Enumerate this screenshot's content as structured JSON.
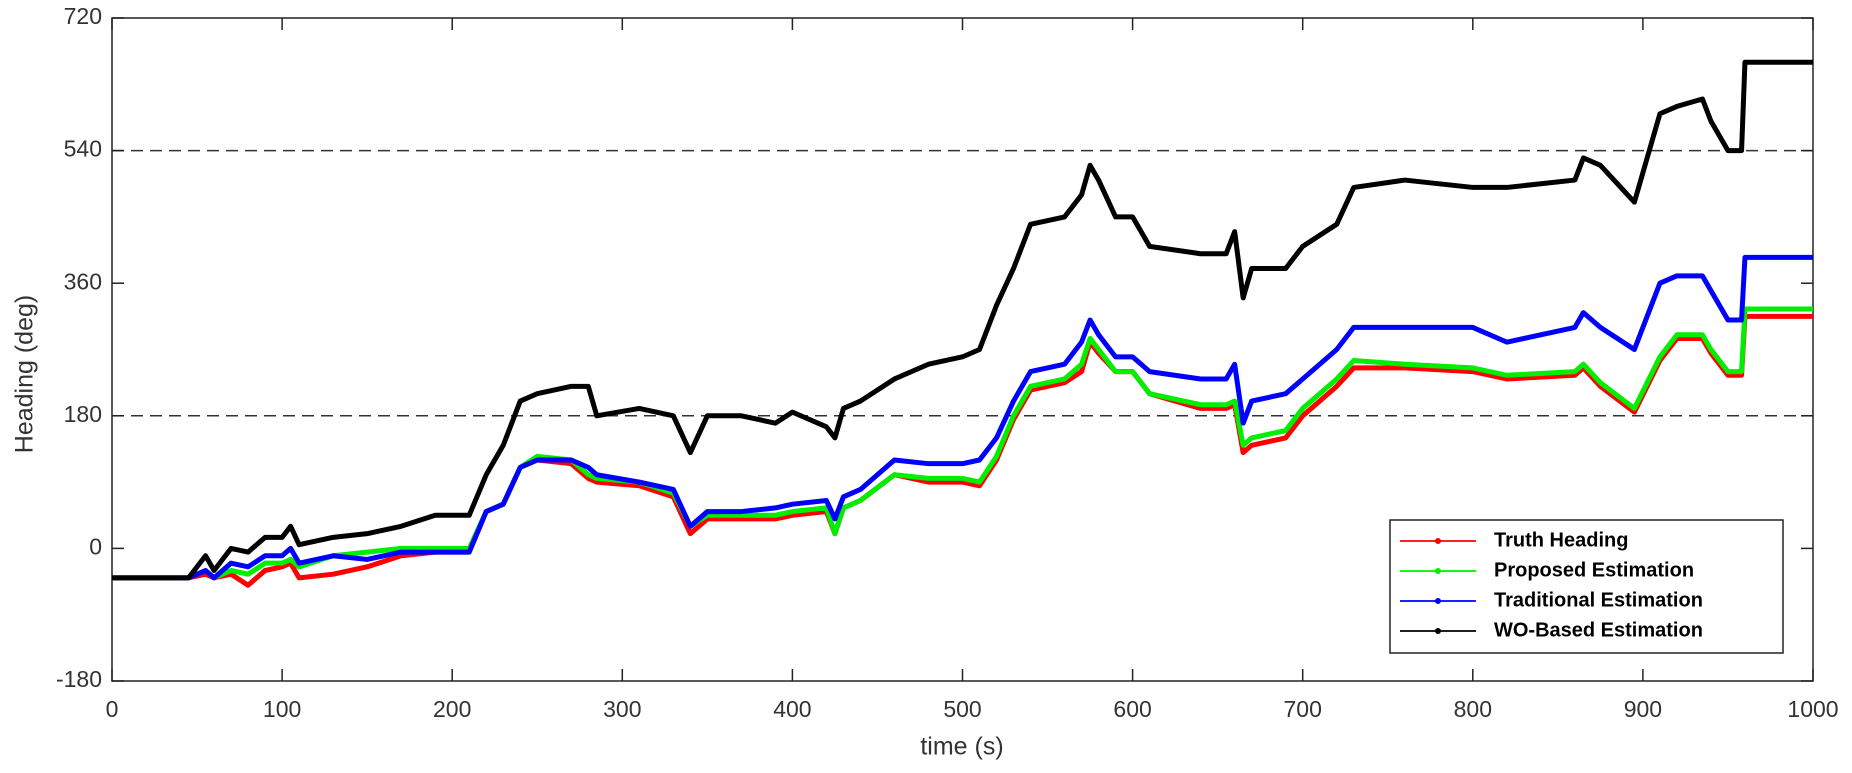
{
  "chart_data": {
    "type": "line",
    "x_label": "time (s)",
    "y_label": "Heading (deg)",
    "x": [
      0,
      45,
      55,
      60,
      70,
      80,
      90,
      100,
      105,
      110,
      130,
      150,
      170,
      190,
      210,
      220,
      230,
      240,
      250,
      270,
      280,
      285,
      310,
      330,
      340,
      350,
      370,
      390,
      400,
      420,
      425,
      430,
      440,
      460,
      480,
      500,
      510,
      520,
      530,
      540,
      560,
      570,
      575,
      580,
      590,
      600,
      610,
      640,
      655,
      660,
      665,
      670,
      690,
      700,
      720,
      730,
      760,
      800,
      820,
      860,
      865,
      875,
      895,
      910,
      920,
      935,
      940,
      950,
      958,
      960,
      1000
    ],
    "series": [
      {
        "name": "Truth Heading",
        "color": "#ff0000",
        "values": [
          -40,
          -40,
          -35,
          -40,
          -35,
          -50,
          -30,
          -25,
          -20,
          -40,
          -35,
          -25,
          -10,
          -5,
          -5,
          50,
          60,
          110,
          120,
          115,
          95,
          90,
          85,
          70,
          20,
          40,
          40,
          40,
          45,
          50,
          20,
          55,
          65,
          100,
          90,
          90,
          85,
          120,
          175,
          215,
          225,
          240,
          280,
          265,
          240,
          240,
          210,
          190,
          190,
          195,
          130,
          140,
          150,
          180,
          220,
          245,
          245,
          240,
          230,
          235,
          245,
          220,
          185,
          255,
          285,
          285,
          265,
          235,
          235,
          315,
          315
        ]
      },
      {
        "name": "Proposed Estimation",
        "color": "#00ee00",
        "values": [
          -40,
          -40,
          -30,
          -40,
          -30,
          -35,
          -20,
          -20,
          -15,
          -25,
          -10,
          -5,
          0,
          0,
          0,
          50,
          60,
          110,
          125,
          120,
          100,
          95,
          90,
          75,
          30,
          45,
          45,
          45,
          50,
          55,
          20,
          55,
          65,
          100,
          95,
          95,
          90,
          125,
          180,
          220,
          230,
          250,
          285,
          270,
          240,
          240,
          210,
          195,
          195,
          200,
          140,
          150,
          160,
          190,
          230,
          255,
          250,
          245,
          235,
          240,
          250,
          225,
          190,
          260,
          290,
          290,
          270,
          240,
          240,
          325,
          325
        ]
      },
      {
        "name": "Traditional Estimation",
        "color": "#0000ff",
        "values": [
          -40,
          -40,
          -30,
          -40,
          -20,
          -25,
          -10,
          -10,
          0,
          -20,
          -10,
          -15,
          -5,
          -5,
          -5,
          50,
          60,
          110,
          120,
          120,
          110,
          100,
          90,
          80,
          30,
          50,
          50,
          55,
          60,
          65,
          40,
          70,
          80,
          120,
          115,
          115,
          120,
          150,
          200,
          240,
          250,
          280,
          310,
          290,
          260,
          260,
          240,
          230,
          230,
          250,
          170,
          200,
          210,
          230,
          270,
          300,
          300,
          300,
          280,
          300,
          320,
          300,
          270,
          360,
          370,
          370,
          350,
          310,
          310,
          395,
          395
        ]
      },
      {
        "name": "WO-Based Estimation",
        "color": "#000000",
        "values": [
          -40,
          -40,
          -10,
          -30,
          0,
          -5,
          15,
          15,
          30,
          5,
          15,
          20,
          30,
          45,
          45,
          100,
          140,
          200,
          210,
          220,
          220,
          180,
          190,
          180,
          130,
          180,
          180,
          170,
          185,
          165,
          150,
          190,
          200,
          230,
          250,
          260,
          270,
          330,
          380,
          440,
          450,
          480,
          520,
          500,
          450,
          450,
          410,
          400,
          400,
          430,
          340,
          380,
          380,
          410,
          440,
          490,
          500,
          490,
          490,
          500,
          530,
          520,
          470,
          590,
          600,
          610,
          580,
          540,
          540,
          660,
          660
        ]
      }
    ],
    "xlim": [
      0,
      1000
    ],
    "xticks": [
      0,
      100,
      200,
      300,
      400,
      500,
      600,
      700,
      800,
      900,
      1000
    ],
    "ylim": [
      -180,
      720
    ],
    "yticks": [
      -180,
      0,
      180,
      360,
      540,
      720
    ],
    "grid_y": [
      180,
      540
    ],
    "legend": "lower right"
  }
}
